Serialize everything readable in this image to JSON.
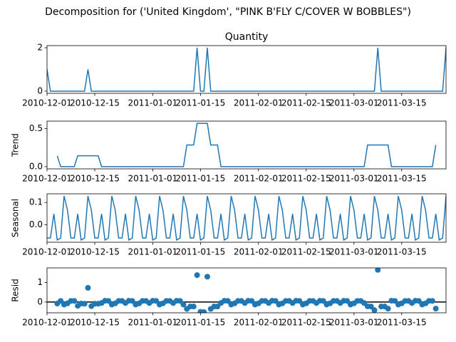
{
  "chart_data": {
    "type": "multi",
    "title": "Decomposition for ('United Kingdom', \"PINK B'FLY C/COVER W BOBBLES\")",
    "x": [
      "2010-12-01",
      "2010-12-02",
      "2010-12-03",
      "2010-12-04",
      "2010-12-05",
      "2010-12-06",
      "2010-12-07",
      "2010-12-08",
      "2010-12-09",
      "2010-12-10",
      "2010-12-11",
      "2010-12-12",
      "2010-12-13",
      "2010-12-14",
      "2010-12-15",
      "2010-12-16",
      "2010-12-17",
      "2010-12-18",
      "2010-12-19",
      "2010-12-20",
      "2010-12-21",
      "2010-12-22",
      "2010-12-23",
      "2010-12-24",
      "2010-12-25",
      "2010-12-26",
      "2010-12-27",
      "2010-12-28",
      "2010-12-29",
      "2010-12-30",
      "2010-12-31",
      "2011-01-01",
      "2011-01-02",
      "2011-01-03",
      "2011-01-04",
      "2011-01-05",
      "2011-01-06",
      "2011-01-07",
      "2011-01-08",
      "2011-01-09",
      "2011-01-10",
      "2011-01-11",
      "2011-01-12",
      "2011-01-13",
      "2011-01-14",
      "2011-01-15",
      "2011-01-16",
      "2011-01-17",
      "2011-01-18",
      "2011-01-19",
      "2011-01-20",
      "2011-01-21",
      "2011-01-22",
      "2011-01-23",
      "2011-01-24",
      "2011-01-25",
      "2011-01-26",
      "2011-01-27",
      "2011-01-28",
      "2011-01-29",
      "2011-01-30",
      "2011-01-31",
      "2011-02-01",
      "2011-02-02",
      "2011-02-03",
      "2011-02-04",
      "2011-02-05",
      "2011-02-06",
      "2011-02-07",
      "2011-02-08",
      "2011-02-09",
      "2011-02-10",
      "2011-02-11",
      "2011-02-12",
      "2011-02-13",
      "2011-02-14",
      "2011-02-15",
      "2011-02-16",
      "2011-02-17",
      "2011-02-18",
      "2011-02-19",
      "2011-02-20",
      "2011-02-21",
      "2011-02-22",
      "2011-02-23",
      "2011-02-24",
      "2011-02-25",
      "2011-02-26",
      "2011-02-27",
      "2011-02-28",
      "2011-03-01",
      "2011-03-02",
      "2011-03-03",
      "2011-03-04",
      "2011-03-05",
      "2011-03-06",
      "2011-03-07",
      "2011-03-08",
      "2011-03-09",
      "2011-03-10",
      "2011-03-11",
      "2011-03-12",
      "2011-03-13",
      "2011-03-14",
      "2011-03-15",
      "2011-03-16",
      "2011-03-17",
      "2011-03-18",
      "2011-03-19",
      "2011-03-20",
      "2011-03-21",
      "2011-03-22",
      "2011-03-23",
      "2011-03-24",
      "2011-03-25",
      "2011-03-26",
      "2011-03-27",
      "2011-03-28"
    ],
    "xlim": [
      "2010-12-01",
      "2011-03-28"
    ],
    "xticks": [
      "2010-12-01",
      "2010-12-15",
      "2011-01-01",
      "2011-01-15",
      "2011-02-01",
      "2011-02-15",
      "2011-03-01",
      "2011-03-15"
    ],
    "panels": [
      {
        "type": "line",
        "title": "Quantity",
        "color": "#1f77b4",
        "ylim": [
          -0.1,
          2.1
        ],
        "yticks": [
          0,
          2
        ],
        "values": [
          1,
          0,
          0,
          0,
          0,
          0,
          0,
          0,
          0,
          0,
          0,
          0,
          1,
          0,
          0,
          0,
          0,
          0,
          0,
          0,
          0,
          0,
          0,
          0,
          0,
          0,
          0,
          0,
          0,
          0,
          0,
          0,
          0,
          0,
          0,
          0,
          0,
          0,
          0,
          0,
          0,
          0,
          0,
          0,
          2,
          0,
          0,
          2,
          0,
          0,
          0,
          0,
          0,
          0,
          0,
          0,
          0,
          0,
          0,
          0,
          0,
          0,
          0,
          0,
          0,
          0,
          0,
          0,
          0,
          0,
          0,
          0,
          0,
          0,
          0,
          0,
          0,
          0,
          0,
          0,
          0,
          0,
          0,
          0,
          0,
          0,
          0,
          0,
          0,
          0,
          0,
          0,
          0,
          0,
          0,
          0,
          0,
          2,
          0,
          0,
          0,
          0,
          0,
          0,
          0,
          0,
          0,
          0,
          0,
          0,
          0,
          0,
          0,
          0,
          0,
          0,
          0,
          2
        ]
      },
      {
        "type": "line",
        "ylabel": "Trend",
        "color": "#1f77b4",
        "ylim": [
          -0.029,
          0.6
        ],
        "yticks": [
          {
            "value": 0,
            "label": "0.0"
          },
          {
            "value": 0.5,
            "label": "0.5"
          }
        ],
        "values": [
          null,
          null,
          null,
          0.143,
          0,
          0,
          0,
          0,
          0,
          0.143,
          0.143,
          0.143,
          0.143,
          0.143,
          0.143,
          0.143,
          0,
          0,
          0,
          0,
          0,
          0,
          0,
          0,
          0,
          0,
          0,
          0,
          0,
          0,
          0,
          0,
          0,
          0,
          0,
          0,
          0,
          0,
          0,
          0,
          0,
          0.286,
          0.286,
          0.286,
          0.571,
          0.571,
          0.571,
          0.571,
          0.286,
          0.286,
          0.286,
          0,
          0,
          0,
          0,
          0,
          0,
          0,
          0,
          0,
          0,
          0,
          0,
          0,
          0,
          0,
          0,
          0,
          0,
          0,
          0,
          0,
          0,
          0,
          0,
          0,
          0,
          0,
          0,
          0,
          0,
          0,
          0,
          0,
          0,
          0,
          0,
          0,
          0,
          0,
          0,
          0,
          0,
          0,
          0.286,
          0.286,
          0.286,
          0.286,
          0.286,
          0.286,
          0.286,
          0,
          0,
          0,
          0,
          0,
          0,
          0,
          0,
          0,
          0,
          0,
          0,
          0,
          0.286,
          null,
          null,
          null
        ]
      },
      {
        "type": "line",
        "ylabel": "Seasonal",
        "color": "#1f77b4",
        "ylim": [
          -0.078,
          0.139
        ],
        "yticks": [
          {
            "value": 0,
            "label": "0.0"
          },
          {
            "value": 0.1,
            "label": "0.1"
          }
        ],
        "values": [
          -0.059,
          -0.059,
          0.049,
          -0.068,
          -0.059,
          0.129,
          0.066,
          -0.059,
          -0.059,
          0.049,
          -0.068,
          -0.059,
          0.129,
          0.066,
          -0.059,
          -0.059,
          0.049,
          -0.068,
          -0.059,
          0.129,
          0.066,
          -0.059,
          -0.059,
          0.049,
          -0.068,
          -0.059,
          0.129,
          0.066,
          -0.059,
          -0.059,
          0.049,
          -0.068,
          -0.059,
          0.129,
          0.066,
          -0.059,
          -0.059,
          0.049,
          -0.068,
          -0.059,
          0.129,
          0.066,
          -0.059,
          -0.059,
          0.049,
          -0.068,
          -0.059,
          0.129,
          0.066,
          -0.059,
          -0.059,
          0.049,
          -0.068,
          -0.059,
          0.129,
          0.066,
          -0.059,
          -0.059,
          0.049,
          -0.068,
          -0.059,
          0.129,
          0.066,
          -0.059,
          -0.059,
          0.049,
          -0.068,
          -0.059,
          0.129,
          0.066,
          -0.059,
          -0.059,
          0.049,
          -0.068,
          -0.059,
          0.129,
          0.066,
          -0.059,
          -0.059,
          0.049,
          -0.068,
          -0.059,
          0.129,
          0.066,
          -0.059,
          -0.059,
          0.049,
          -0.068,
          -0.059,
          0.129,
          0.066,
          -0.059,
          -0.059,
          0.049,
          -0.068,
          -0.059,
          0.129,
          0.066,
          -0.059,
          -0.059,
          0.049,
          -0.068,
          -0.059,
          0.129,
          0.066,
          -0.059,
          -0.059,
          0.049,
          -0.068,
          -0.059,
          0.129,
          0.066,
          -0.059,
          -0.059,
          0.049,
          -0.068,
          -0.059,
          0.129
        ]
      },
      {
        "type": "scatter",
        "ylabel": "Resid",
        "color": "#1f77b4",
        "hline": 0,
        "hline_color": "#000000",
        "ylim": [
          -0.55,
          1.75
        ],
        "yticks": [
          0,
          1
        ],
        "values": [
          null,
          null,
          null,
          -0.075,
          0.059,
          -0.129,
          -0.066,
          0.059,
          0.059,
          -0.192,
          -0.075,
          -0.084,
          0.728,
          -0.209,
          -0.084,
          -0.084,
          -0.049,
          0.068,
          0.059,
          -0.129,
          -0.066,
          0.059,
          0.059,
          -0.049,
          0.068,
          0.059,
          -0.129,
          -0.066,
          0.059,
          0.059,
          -0.049,
          0.068,
          0.059,
          -0.129,
          -0.066,
          0.059,
          0.059,
          -0.049,
          0.068,
          0.059,
          -0.129,
          -0.352,
          -0.227,
          -0.227,
          1.38,
          -0.503,
          -0.512,
          1.3,
          -0.352,
          -0.227,
          -0.227,
          -0.049,
          0.068,
          0.059,
          -0.129,
          -0.066,
          0.059,
          0.059,
          -0.049,
          0.068,
          0.059,
          -0.129,
          -0.066,
          0.059,
          0.059,
          -0.049,
          0.068,
          0.059,
          -0.129,
          -0.066,
          0.059,
          0.059,
          -0.049,
          0.068,
          0.059,
          -0.129,
          -0.066,
          0.059,
          0.059,
          -0.049,
          0.068,
          0.059,
          -0.129,
          -0.066,
          0.059,
          0.059,
          -0.049,
          0.068,
          0.059,
          -0.129,
          -0.066,
          0.059,
          0.059,
          -0.049,
          -0.218,
          -0.227,
          -0.415,
          1.648,
          -0.227,
          -0.227,
          -0.335,
          0.068,
          0.059,
          -0.129,
          -0.066,
          0.059,
          0.059,
          -0.049,
          0.068,
          0.059,
          -0.129,
          -0.066,
          0.059,
          0.059,
          -0.335,
          null,
          null,
          null
        ]
      }
    ]
  }
}
